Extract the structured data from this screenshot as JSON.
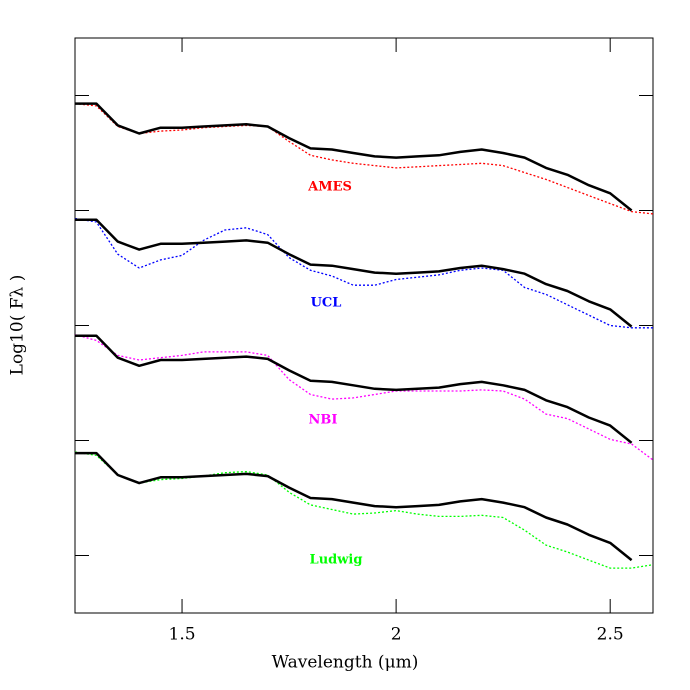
{
  "chart_data": {
    "type": "line",
    "x_label": "Wavelength (μm)",
    "y_label": "Log10( Fλ )",
    "x": [
      1.25,
      1.3,
      1.35,
      1.4,
      1.45,
      1.5,
      1.55,
      1.6,
      1.65,
      1.7,
      1.75,
      1.8,
      1.85,
      1.9,
      1.95,
      2.0,
      2.05,
      2.1,
      2.15,
      2.2,
      2.25,
      2.3,
      2.35,
      2.4,
      2.45,
      2.5,
      2.55,
      2.6
    ],
    "xlim": [
      1.25,
      2.6
    ],
    "xticks": [
      1.5,
      2,
      2.5
    ],
    "ylim": [
      0,
      5
    ],
    "yticks": [
      0.5,
      1.5,
      2.5,
      3.5,
      4.5
    ],
    "series": [
      {
        "color": "#000000",
        "line_style": "solid",
        "values": [
          4.43,
          4.43,
          4.24,
          4.17,
          4.22,
          4.22,
          4.23,
          4.24,
          4.25,
          4.23,
          4.13,
          4.04,
          4.03,
          4.0,
          3.97,
          3.96,
          3.97,
          3.98,
          4.01,
          4.03,
          4.0,
          3.96,
          3.87,
          3.81,
          3.72,
          3.65,
          3.5,
          null
        ]
      },
      {
        "name": "AMES",
        "color": "#ff0000",
        "line_style": "dotted",
        "values": [
          4.43,
          4.41,
          4.23,
          4.17,
          4.19,
          4.2,
          4.22,
          4.23,
          4.24,
          4.23,
          4.1,
          3.98,
          3.94,
          3.91,
          3.89,
          3.87,
          3.88,
          3.89,
          3.9,
          3.91,
          3.89,
          3.83,
          3.77,
          3.7,
          3.63,
          3.56,
          3.49,
          3.47
        ]
      },
      {
        "color": "#000000",
        "line_style": "solid",
        "values": [
          3.42,
          3.42,
          3.23,
          3.16,
          3.21,
          3.21,
          3.22,
          3.23,
          3.24,
          3.22,
          3.12,
          3.03,
          3.02,
          2.99,
          2.96,
          2.95,
          2.96,
          2.97,
          3.0,
          3.02,
          2.99,
          2.95,
          2.86,
          2.8,
          2.71,
          2.64,
          2.49,
          null
        ]
      },
      {
        "name": "UCL",
        "color": "#0000ff",
        "line_style": "dotted",
        "values": [
          3.43,
          3.4,
          3.12,
          3.0,
          3.07,
          3.11,
          3.24,
          3.33,
          3.35,
          3.29,
          3.09,
          2.98,
          2.93,
          2.85,
          2.85,
          2.9,
          2.92,
          2.94,
          2.98,
          3.0,
          2.98,
          2.83,
          2.77,
          2.68,
          2.59,
          2.5,
          2.48,
          2.48
        ]
      },
      {
        "color": "#000000",
        "line_style": "solid",
        "values": [
          2.41,
          2.41,
          2.22,
          2.15,
          2.2,
          2.2,
          2.21,
          2.22,
          2.23,
          2.21,
          2.11,
          2.02,
          2.01,
          1.98,
          1.95,
          1.94,
          1.95,
          1.96,
          1.99,
          2.01,
          1.98,
          1.94,
          1.85,
          1.79,
          1.7,
          1.63,
          1.48,
          null
        ]
      },
      {
        "name": "NBI",
        "color": "#ff00ff",
        "line_style": "dotted",
        "values": [
          2.42,
          2.37,
          2.24,
          2.2,
          2.22,
          2.24,
          2.27,
          2.27,
          2.27,
          2.24,
          2.03,
          1.9,
          1.86,
          1.87,
          1.9,
          1.93,
          1.93,
          1.93,
          1.93,
          1.94,
          1.93,
          1.86,
          1.73,
          1.69,
          1.6,
          1.51,
          1.47,
          1.33
        ]
      },
      {
        "color": "#000000",
        "line_style": "solid",
        "values": [
          1.39,
          1.39,
          1.2,
          1.13,
          1.18,
          1.18,
          1.19,
          1.2,
          1.21,
          1.19,
          1.09,
          1.0,
          0.99,
          0.96,
          0.93,
          0.92,
          0.93,
          0.94,
          0.97,
          0.99,
          0.96,
          0.92,
          0.83,
          0.77,
          0.68,
          0.61,
          0.46,
          null
        ]
      },
      {
        "name": "Ludwig",
        "color": "#00ff00",
        "line_style": "dotted",
        "values": [
          1.4,
          1.37,
          1.2,
          1.13,
          1.16,
          1.17,
          1.19,
          1.22,
          1.23,
          1.2,
          1.05,
          0.94,
          0.9,
          0.86,
          0.87,
          0.89,
          0.86,
          0.84,
          0.84,
          0.85,
          0.83,
          0.72,
          0.59,
          0.53,
          0.46,
          0.39,
          0.39,
          0.42
        ]
      }
    ]
  }
}
